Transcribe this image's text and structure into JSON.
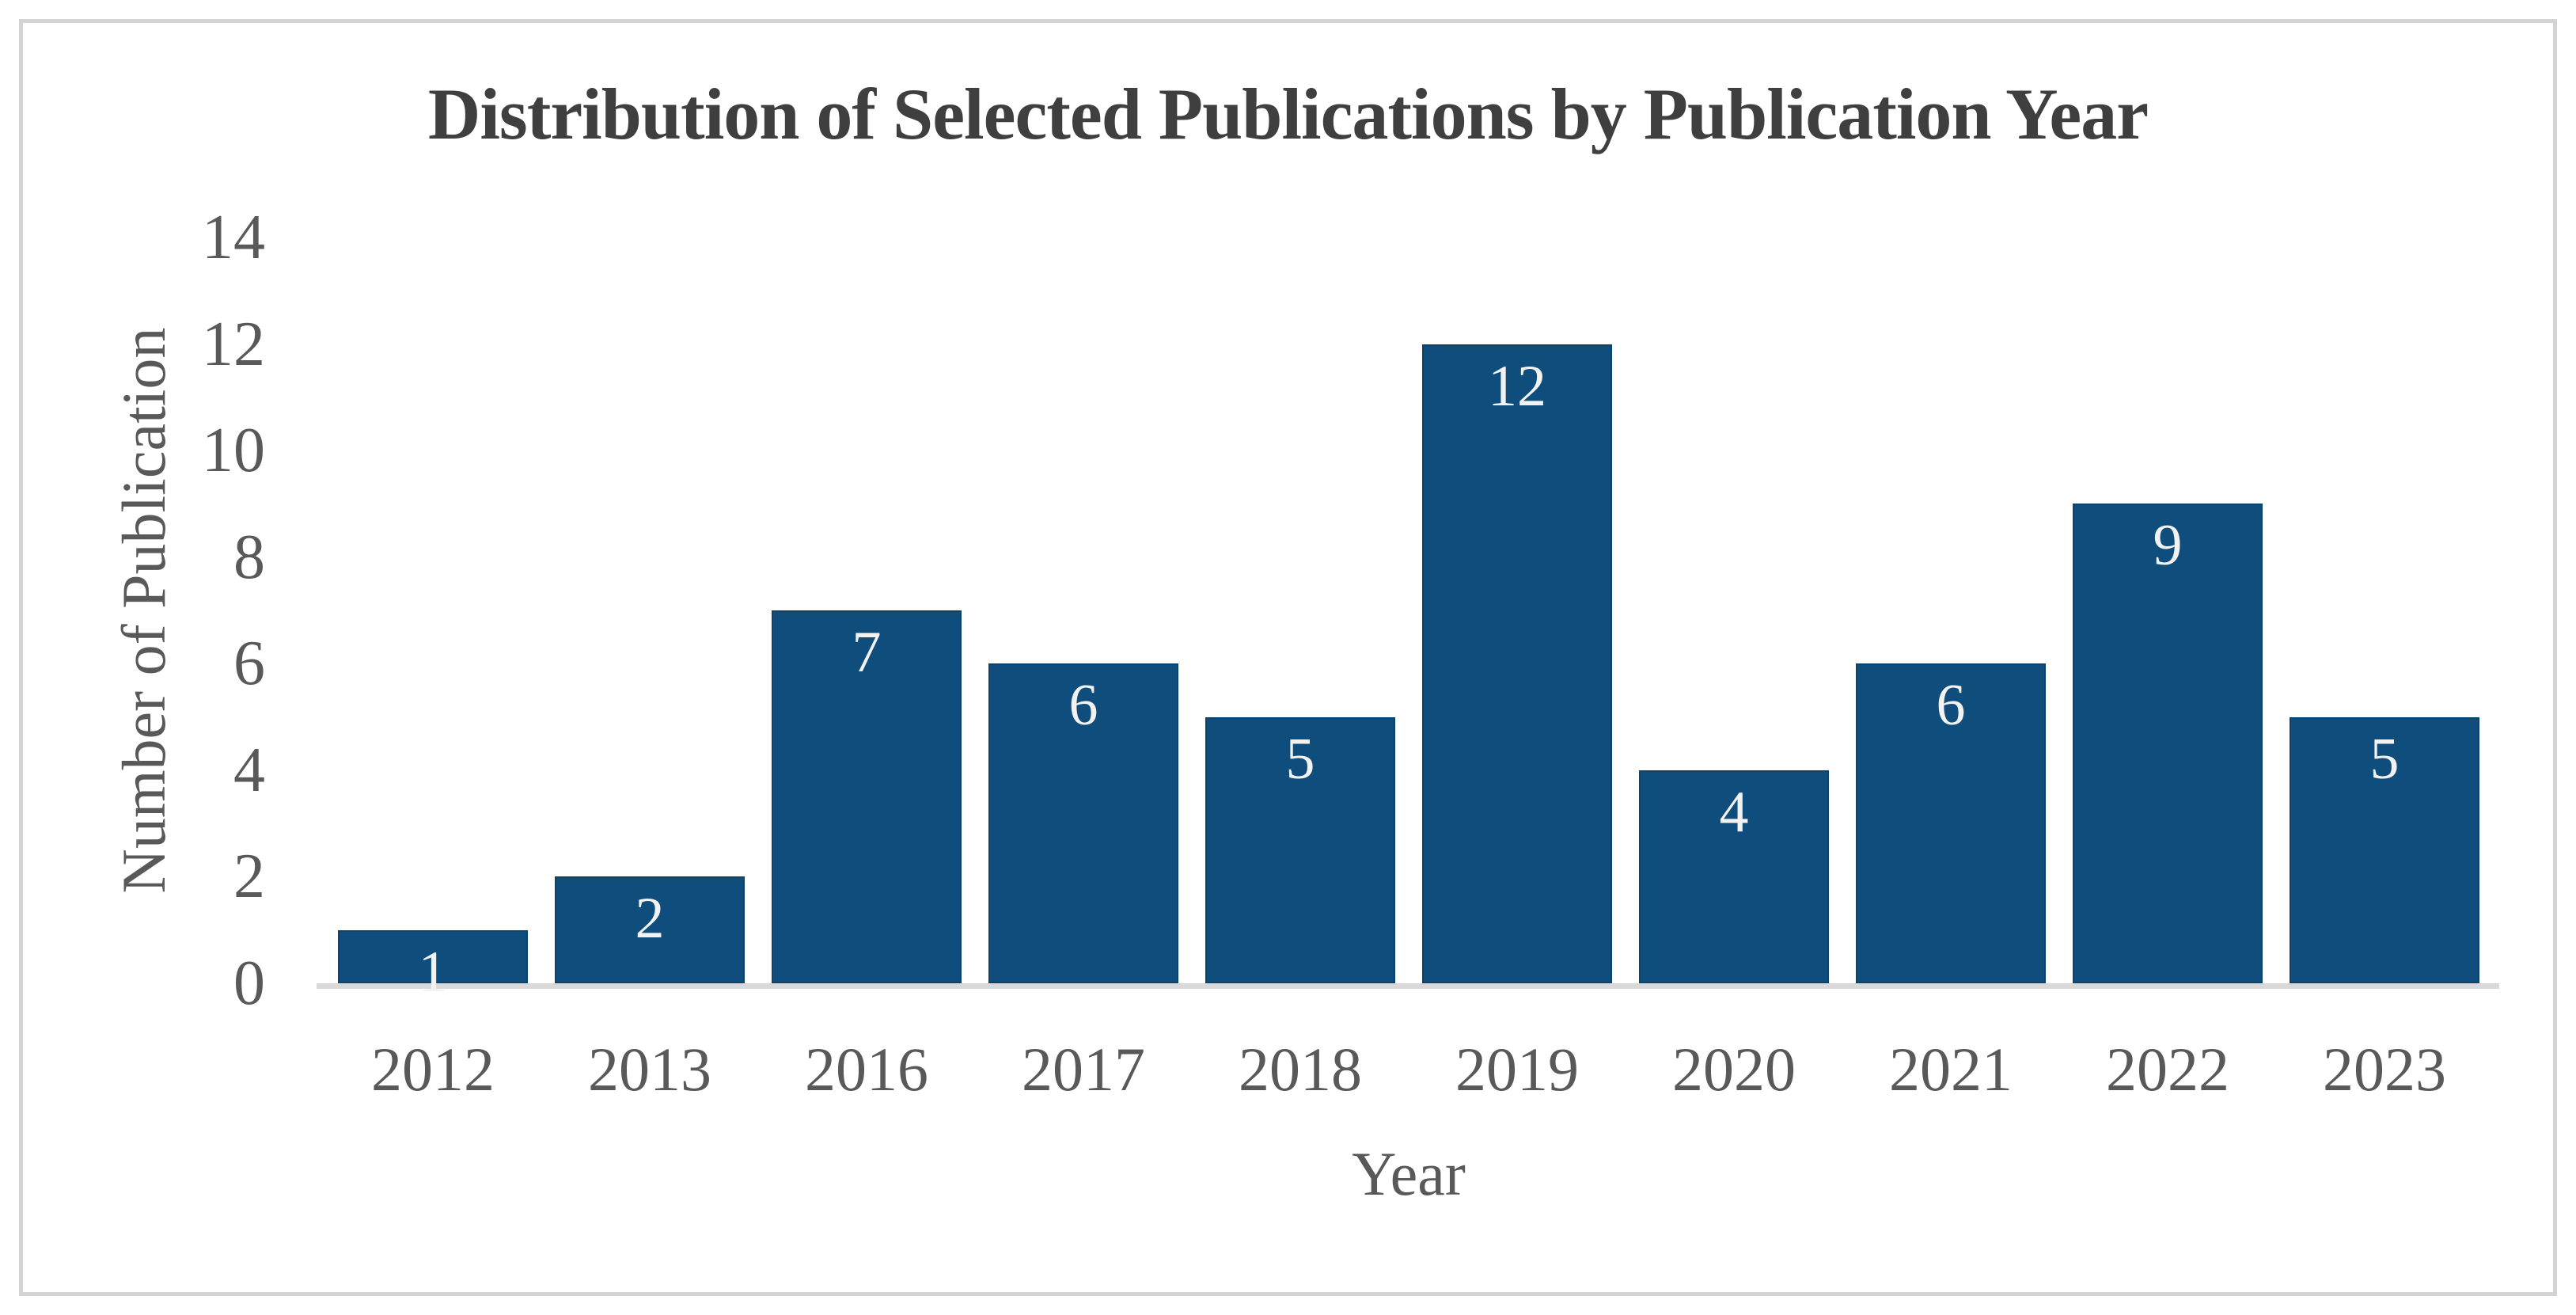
{
  "figure": {
    "title": "Distribution of Selected Publications by Publication Year"
  },
  "chart_data": {
    "type": "bar",
    "title": "Distribution of Selected Publications by Publication Year",
    "categories": [
      "2012",
      "2013",
      "2016",
      "2017",
      "2018",
      "2019",
      "2020",
      "2021",
      "2022",
      "2023"
    ],
    "values": [
      1,
      2,
      7,
      6,
      5,
      12,
      4,
      6,
      9,
      5
    ],
    "xlabel": "Year",
    "ylabel": "Number of Publication",
    "ylim": [
      0,
      14
    ],
    "yticks": [
      0,
      2,
      4,
      6,
      8,
      10,
      12,
      14
    ],
    "grid": false,
    "legend": "none",
    "data_labels_position": "inside-end"
  },
  "colors": {
    "bar": "#0e4d7c",
    "data_label": "#f2f2f2",
    "title_text": "#3f3f3f",
    "axis_text": "#595959",
    "axis_line": "#d9d9d9",
    "frame_border": "#d3d3d3",
    "background": "#ffffff"
  }
}
